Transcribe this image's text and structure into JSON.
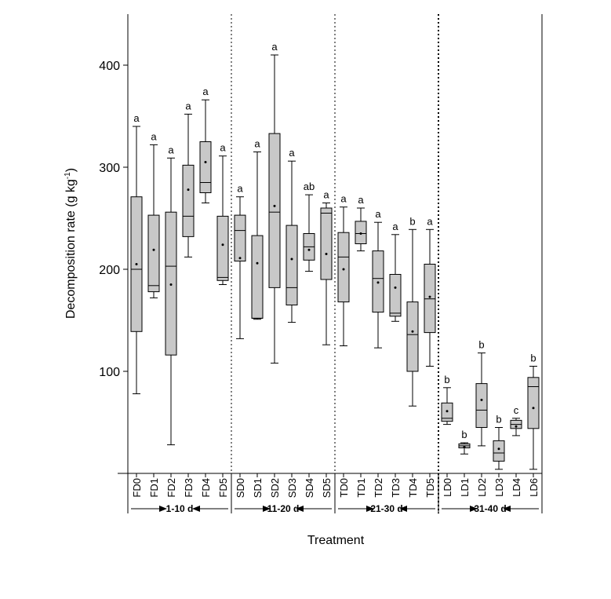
{
  "chart_data": {
    "type": "box",
    "y_label": "Decomposition rate (g kg",
    "y_label_sup": "-1",
    "y_label_end": ")",
    "x_label": "Treatment",
    "ylim": [
      0,
      450
    ],
    "yticks": [
      100,
      200,
      300,
      400
    ],
    "color": "#c8c8c8",
    "categories": [
      "FD0",
      "FD1",
      "FD2",
      "FD3",
      "FD4",
      "FD5",
      "SD0",
      "SD1",
      "SD2",
      "SD3",
      "SD4",
      "SD5",
      "TD0",
      "TD1",
      "TD2",
      "TD3",
      "TD4",
      "TD5",
      "LD0",
      "LD1",
      "LD2",
      "LD3",
      "LD4",
      "LD6"
    ],
    "groups": [
      "1-10 d",
      "11-20 d",
      "21-30 d",
      "31-40 d"
    ],
    "boxes": [
      {
        "min": 78,
        "q1": 139,
        "median": 200,
        "q3": 271,
        "max": 340,
        "mean": 205
      },
      {
        "min": 172,
        "q1": 178,
        "median": 184,
        "q3": 253,
        "max": 322,
        "mean": 219
      },
      {
        "min": 28,
        "q1": 116,
        "median": 203,
        "q3": 256,
        "max": 309,
        "mean": 185
      },
      {
        "min": 212,
        "q1": 232,
        "median": 252,
        "q3": 302,
        "max": 352,
        "mean": 278
      },
      {
        "min": 265,
        "q1": 275,
        "median": 285,
        "q3": 325,
        "max": 366,
        "mean": 305
      },
      {
        "min": 185,
        "q1": 189,
        "median": 192,
        "q3": 252,
        "max": 311,
        "mean": 224
      },
      {
        "min": 132,
        "q1": 208,
        "median": 238,
        "q3": 253,
        "max": 271,
        "mean": 211
      },
      {
        "min": 151,
        "q1": 152,
        "median": 152,
        "q3": 233,
        "max": 315,
        "mean": 206
      },
      {
        "min": 108,
        "q1": 182,
        "median": 256,
        "q3": 333,
        "max": 410,
        "mean": 262
      },
      {
        "min": 148,
        "q1": 165,
        "median": 182,
        "q3": 243,
        "max": 306,
        "mean": 210
      },
      {
        "min": 198,
        "q1": 209,
        "median": 222,
        "q3": 235,
        "max": 273,
        "mean": 219
      },
      {
        "min": 126,
        "q1": 190,
        "median": 255,
        "q3": 260,
        "max": 265,
        "mean": 215
      },
      {
        "min": 125,
        "q1": 168,
        "median": 212,
        "q3": 236,
        "max": 261,
        "mean": 200
      },
      {
        "min": 218,
        "q1": 225,
        "median": 235,
        "q3": 247,
        "max": 260,
        "mean": 235
      },
      {
        "min": 123,
        "q1": 158,
        "median": 191,
        "q3": 218,
        "max": 246,
        "mean": 187
      },
      {
        "min": 149,
        "q1": 154,
        "median": 157,
        "q3": 195,
        "max": 234,
        "mean": 182
      },
      {
        "min": 66,
        "q1": 100,
        "median": 136,
        "q3": 168,
        "max": 239,
        "mean": 139
      },
      {
        "min": 105,
        "q1": 138,
        "median": 171,
        "q3": 205,
        "max": 239,
        "mean": 173
      },
      {
        "min": 48,
        "q1": 51,
        "median": 54,
        "q3": 69,
        "max": 84,
        "mean": 61
      },
      {
        "min": 19,
        "q1": 25,
        "median": 27,
        "q3": 29,
        "max": 30,
        "mean": 26
      },
      {
        "min": 27,
        "q1": 45,
        "median": 62,
        "q3": 88,
        "max": 118,
        "mean": 72
      },
      {
        "min": 4,
        "q1": 12,
        "median": 20,
        "q3": 32,
        "max": 45,
        "mean": 24
      },
      {
        "min": 37,
        "q1": 44,
        "median": 48,
        "q3": 52,
        "max": 54,
        "mean": 46
      },
      {
        "min": 4,
        "q1": 44,
        "median": 85,
        "q3": 94,
        "max": 105,
        "mean": 64
      }
    ],
    "letters": [
      "a",
      "a",
      "a",
      "a",
      "a",
      "a",
      "a",
      "a",
      "a",
      "a",
      "ab",
      "a",
      "a",
      "a",
      "a",
      "a",
      "b",
      "a",
      "b",
      "b",
      "b",
      "b",
      "c",
      "b"
    ]
  }
}
